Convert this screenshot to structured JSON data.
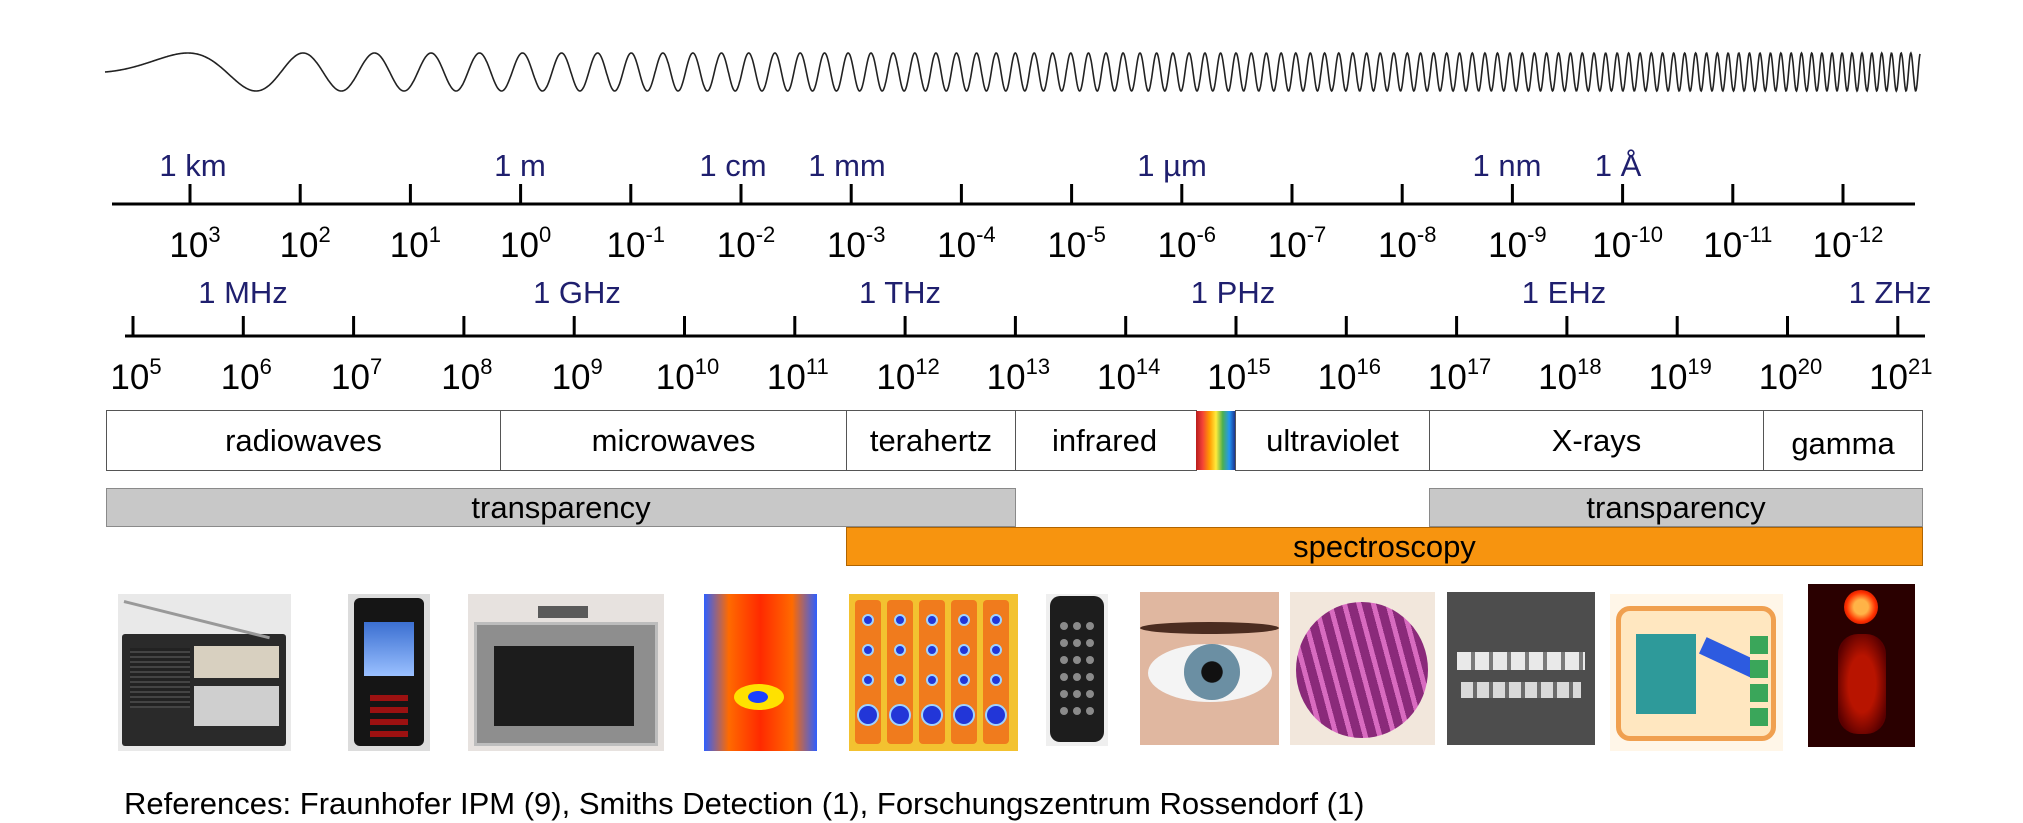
{
  "wavelength_scale": {
    "unit_labels": [
      "1 km",
      "1 m",
      "1 cm",
      "1 mm",
      "1 µm",
      "1 nm",
      "1 Å"
    ],
    "exponents": [
      "3",
      "2",
      "1",
      "0",
      "-1",
      "-2",
      "-3",
      "-4",
      "-5",
      "-6",
      "-7",
      "-8",
      "-9",
      "-10",
      "-11",
      "-12"
    ]
  },
  "frequency_scale": {
    "unit_labels": [
      "1 MHz",
      "1 GHz",
      "1 THz",
      "1 PHz",
      "1 EHz",
      "1 ZHz"
    ],
    "exponents": [
      "5",
      "6",
      "7",
      "8",
      "9",
      "10",
      "11",
      "12",
      "13",
      "14",
      "15",
      "16",
      "17",
      "18",
      "19",
      "20",
      "21"
    ]
  },
  "power_base": "10",
  "bands": [
    "radiowaves",
    "microwaves",
    "terahertz",
    "infrared",
    "ultraviolet",
    "X-rays",
    "gamma"
  ],
  "applications": {
    "transparency_left": "transparency",
    "transparency_right": "transparency",
    "spectroscopy": "spectroscopy"
  },
  "colors": {
    "axis": "#000000",
    "unit_label": "#1f1f6e",
    "transparency_fill": "#c8c8c8",
    "spectroscopy_fill": "#f7940f"
  },
  "photos": [
    "radio",
    "mobile phone",
    "microwave oven",
    "thermal image",
    "terahertz image",
    "remote control",
    "eye",
    "wafer",
    "dental x-ray",
    "baggage scan",
    "pet scan"
  ],
  "references": "References: Fraunhofer IPM (9), Smiths Detection (1), Forschungszentrum Rossendorf (1)"
}
